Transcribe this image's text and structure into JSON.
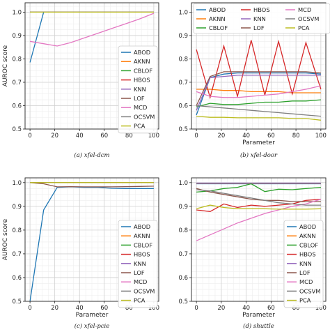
{
  "chart_data": [
    {
      "type": "line",
      "caption": "(a) xfel-dcm",
      "xlabel": "",
      "ylabel": "AUROC score",
      "xlim": [
        -4,
        104
      ],
      "ylim": [
        0.5,
        1.04
      ],
      "xticks": [
        0,
        20,
        40,
        60,
        80,
        100
      ],
      "yticks": [
        0.5,
        0.6,
        0.7,
        0.8,
        0.9,
        1.0
      ],
      "grid": true,
      "legend": "lower-right",
      "x": [
        0,
        11,
        22,
        33,
        44,
        55,
        66,
        77,
        88,
        100
      ],
      "series": [
        {
          "name": "ABOD",
          "color": "#1f77b4",
          "values": [
            0.785,
            1.0,
            1.0,
            1.0,
            1.0,
            1.0,
            1.0,
            1.0,
            1.0,
            1.0
          ]
        },
        {
          "name": "AKNN",
          "color": "#ff7f0e",
          "values": [
            1.0,
            1.0,
            1.0,
            1.0,
            1.0,
            1.0,
            1.0,
            1.0,
            1.0,
            1.0
          ]
        },
        {
          "name": "CBLOF",
          "color": "#2ca02c",
          "values": [
            1.0,
            1.0,
            1.0,
            1.0,
            1.0,
            1.0,
            1.0,
            1.0,
            1.0,
            1.0
          ]
        },
        {
          "name": "HBOS",
          "color": "#d62728",
          "values": [
            1.0,
            1.0,
            1.0,
            1.0,
            1.0,
            1.0,
            1.0,
            1.0,
            1.0,
            1.0
          ]
        },
        {
          "name": "KNN",
          "color": "#9467bd",
          "values": [
            1.0,
            1.0,
            1.0,
            1.0,
            1.0,
            1.0,
            1.0,
            1.0,
            1.0,
            1.0
          ]
        },
        {
          "name": "LOF",
          "color": "#8c564b",
          "values": [
            1.0,
            1.0,
            1.0,
            1.0,
            1.0,
            1.0,
            1.0,
            1.0,
            1.0,
            1.0
          ]
        },
        {
          "name": "MCD",
          "color": "#e377c2",
          "values": [
            0.875,
            0.865,
            0.855,
            0.87,
            0.89,
            0.91,
            0.93,
            0.95,
            0.97,
            0.995
          ]
        },
        {
          "name": "OCSVM",
          "color": "#7f7f7f",
          "values": [
            1.0,
            1.0,
            1.0,
            1.0,
            1.0,
            1.0,
            1.0,
            1.0,
            1.0,
            1.0
          ]
        },
        {
          "name": "PCA",
          "color": "#bcbd22",
          "values": [
            1.0,
            1.0,
            1.0,
            1.0,
            1.0,
            1.0,
            1.0,
            1.0,
            1.0,
            1.0
          ]
        }
      ]
    },
    {
      "type": "line",
      "caption": "(b) xfel-door",
      "xlabel": "Parameter",
      "ylabel": "",
      "xlim": [
        -4,
        104
      ],
      "ylim": [
        0.5,
        1.04
      ],
      "xticks": [
        0,
        20,
        40,
        60,
        80,
        100
      ],
      "yticks": [
        0.5,
        0.6,
        0.7,
        0.8,
        0.9,
        1.0
      ],
      "grid": true,
      "legend": "top",
      "x": [
        0,
        11,
        22,
        33,
        44,
        55,
        66,
        77,
        88,
        100
      ],
      "series": [
        {
          "name": "ABOD",
          "color": "#1f77b4",
          "values": [
            0.56,
            0.72,
            0.735,
            0.74,
            0.74,
            0.74,
            0.74,
            0.74,
            0.74,
            0.735
          ]
        },
        {
          "name": "AKNN",
          "color": "#ff7f0e",
          "values": [
            0.67,
            0.67,
            0.665,
            0.665,
            0.66,
            0.66,
            0.66,
            0.655,
            0.655,
            0.655
          ]
        },
        {
          "name": "CBLOF",
          "color": "#2ca02c",
          "values": [
            0.595,
            0.61,
            0.605,
            0.605,
            0.61,
            0.615,
            0.615,
            0.62,
            0.62,
            0.625
          ]
        },
        {
          "name": "HBOS",
          "color": "#d62728",
          "values": [
            0.84,
            0.635,
            0.855,
            0.64,
            0.88,
            0.645,
            0.875,
            0.65,
            0.87,
            0.67
          ]
        },
        {
          "name": "KNN",
          "color": "#9467bd",
          "values": [
            0.58,
            0.72,
            0.725,
            0.73,
            0.73,
            0.73,
            0.73,
            0.73,
            0.73,
            0.73
          ]
        },
        {
          "name": "LOF",
          "color": "#8c564b",
          "values": [
            0.6,
            0.725,
            0.745,
            0.745,
            0.745,
            0.745,
            0.745,
            0.745,
            0.745,
            0.74
          ]
        },
        {
          "name": "MCD",
          "color": "#e377c2",
          "values": [
            0.66,
            0.64,
            0.635,
            0.635,
            0.64,
            0.645,
            0.65,
            0.66,
            0.67,
            0.685
          ]
        },
        {
          "name": "OCSVM",
          "color": "#7f7f7f",
          "values": [
            0.6,
            0.595,
            0.59,
            0.585,
            0.58,
            0.575,
            0.57,
            0.565,
            0.56,
            0.555
          ]
        },
        {
          "name": "PCA",
          "color": "#bcbd22",
          "values": [
            0.555,
            0.55,
            0.55,
            0.548,
            0.548,
            0.548,
            0.548,
            0.545,
            0.545,
            0.538
          ]
        }
      ]
    },
    {
      "type": "line",
      "caption": "(c) xfel-pcie",
      "xlabel": "Parameter",
      "ylabel": "AUROC score",
      "xlim": [
        -4,
        104
      ],
      "ylim": [
        0.5,
        1.02
      ],
      "xticks": [
        0,
        20,
        40,
        60,
        80,
        100
      ],
      "yticks": [
        0.5,
        0.6,
        0.7,
        0.8,
        0.9,
        1.0
      ],
      "grid": true,
      "legend": "lower-right",
      "x": [
        0,
        11,
        22,
        33,
        44,
        55,
        66,
        77,
        88,
        100
      ],
      "series": [
        {
          "name": "ABOD",
          "color": "#1f77b4",
          "values": [
            0.5,
            0.885,
            0.98,
            0.982,
            0.98,
            0.98,
            0.976,
            0.975,
            0.975,
            0.975
          ]
        },
        {
          "name": "AKNN",
          "color": "#ff7f0e",
          "values": [
            1.0,
            1.0,
            1.0,
            1.0,
            1.0,
            1.0,
            1.0,
            1.0,
            1.0,
            1.0
          ]
        },
        {
          "name": "CBLOF",
          "color": "#2ca02c",
          "values": [
            1.0,
            1.0,
            1.0,
            1.0,
            1.0,
            1.0,
            1.0,
            1.0,
            1.0,
            1.0
          ]
        },
        {
          "name": "HBOS",
          "color": "#d62728",
          "values": [
            1.0,
            1.0,
            1.0,
            1.0,
            1.0,
            1.0,
            1.0,
            1.0,
            1.0,
            1.0
          ]
        },
        {
          "name": "KNN",
          "color": "#9467bd",
          "values": [
            1.0,
            1.0,
            1.0,
            1.0,
            1.0,
            1.0,
            1.0,
            1.0,
            1.0,
            1.0
          ]
        },
        {
          "name": "LOF",
          "color": "#8c564b",
          "values": [
            1.0,
            0.995,
            0.982,
            0.983,
            0.982,
            0.982,
            0.982,
            0.983,
            0.984,
            0.985
          ]
        },
        {
          "name": "MCD",
          "color": "#e377c2",
          "values": [
            1.0,
            1.0,
            1.0,
            1.0,
            1.0,
            1.0,
            1.0,
            1.0,
            1.0,
            1.0
          ]
        },
        {
          "name": "OCSVM",
          "color": "#7f7f7f",
          "values": [
            1.0,
            1.0,
            1.0,
            1.0,
            1.0,
            1.0,
            1.0,
            1.0,
            1.0,
            1.0
          ]
        },
        {
          "name": "PCA",
          "color": "#bcbd22",
          "values": [
            1.0,
            1.0,
            1.0,
            1.0,
            1.0,
            1.0,
            1.0,
            1.0,
            1.0,
            1.0
          ]
        }
      ]
    },
    {
      "type": "line",
      "caption": "(d) shuttle",
      "xlabel": "Parameter",
      "ylabel": "",
      "xlim": [
        -4,
        104
      ],
      "ylim": [
        0.5,
        1.02
      ],
      "xticks": [
        0,
        20,
        40,
        60,
        80,
        100
      ],
      "yticks": [
        0.5,
        0.6,
        0.7,
        0.8,
        0.9,
        1.0
      ],
      "grid": true,
      "legend": "lower-right",
      "x": [
        0,
        11,
        22,
        33,
        44,
        55,
        66,
        77,
        88,
        100
      ],
      "series": [
        {
          "name": "ABOD",
          "color": "#1f77b4",
          "values": [
            0.995,
            0.995,
            0.995,
            0.995,
            0.995,
            0.995,
            0.995,
            0.995,
            0.995,
            0.995
          ]
        },
        {
          "name": "AKNN",
          "color": "#ff7f0e",
          "values": [
            0.997,
            0.997,
            0.997,
            0.997,
            0.997,
            0.997,
            0.997,
            0.997,
            0.997,
            0.997
          ]
        },
        {
          "name": "CBLOF",
          "color": "#2ca02c",
          "values": [
            0.96,
            0.965,
            0.975,
            0.98,
            0.995,
            0.962,
            0.972,
            0.97,
            0.975,
            0.98
          ]
        },
        {
          "name": "HBOS",
          "color": "#d62728",
          "values": [
            0.885,
            0.878,
            0.91,
            0.895,
            0.905,
            0.9,
            0.905,
            0.91,
            0.925,
            0.93
          ]
        },
        {
          "name": "KNN",
          "color": "#9467bd",
          "values": [
            0.998,
            0.998,
            0.998,
            0.998,
            0.998,
            0.998,
            0.998,
            0.998,
            0.998,
            0.998
          ]
        },
        {
          "name": "LOF",
          "color": "#8c564b",
          "values": [
            0.975,
            0.96,
            0.95,
            0.94,
            0.93,
            0.925,
            0.925,
            0.92,
            0.92,
            0.92
          ]
        },
        {
          "name": "MCD",
          "color": "#e377c2",
          "values": [
            0.755,
            0.78,
            0.805,
            0.83,
            0.85,
            0.87,
            0.885,
            0.9,
            0.91,
            0.93
          ]
        },
        {
          "name": "OCSVM",
          "color": "#7f7f7f",
          "values": [
            0.97,
            0.965,
            0.955,
            0.945,
            0.935,
            0.925,
            0.915,
            0.91,
            0.905,
            0.905
          ]
        },
        {
          "name": "PCA",
          "color": "#bcbd22",
          "values": [
            0.89,
            0.905,
            0.895,
            0.89,
            0.89,
            0.89,
            0.888,
            0.888,
            0.888,
            0.89
          ]
        }
      ]
    }
  ]
}
